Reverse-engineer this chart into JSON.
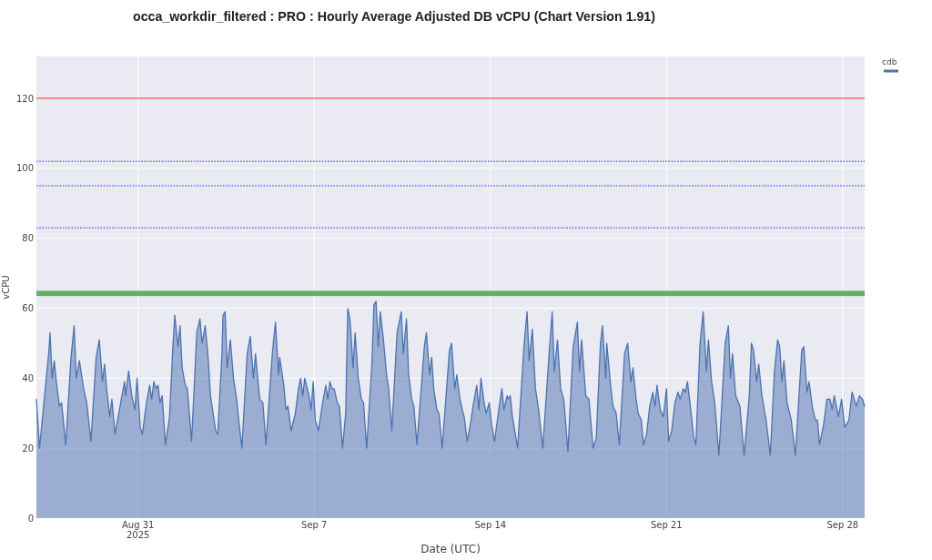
{
  "chart_data": {
    "type": "area",
    "title": "occa_workdir_filtered : PRO : Hourly Average Adjusted DB vCPU (Chart Version 1.91)",
    "xlabel": "Date (UTC)",
    "ylabel": "vCPU",
    "x": [
      "2025-08-26T23:00",
      "2025-08-27T02:00",
      "2025-08-27T11:00",
      "2025-08-27T12:00",
      "2025-08-27T14:00",
      "2025-08-27T16:00",
      "2025-08-27T18:00",
      "2025-08-27T21:00",
      "2025-08-27T23:00",
      "2025-08-28T03:00",
      "2025-08-28T08:00",
      "2025-08-28T11:00",
      "2025-08-28T13:00",
      "2025-08-28T16:00",
      "2025-08-28T20:00",
      "2025-08-28T23:00",
      "2025-08-29T03:00",
      "2025-08-29T08:00",
      "2025-08-29T11:00",
      "2025-08-29T14:00",
      "2025-08-29T16:00",
      "2025-08-29T18:00",
      "2025-08-29T21:00",
      "2025-08-29T23:00",
      "2025-08-30T02:00",
      "2025-08-30T08:00",
      "2025-08-30T11:00",
      "2025-08-30T12:00",
      "2025-08-30T15:00",
      "2025-08-30T18:00",
      "2025-08-30T21:00",
      "2025-08-30T23:00",
      "2025-08-31T02:00",
      "2025-08-31T04:00",
      "2025-08-31T08:00",
      "2025-08-31T11:00",
      "2025-08-31T13:00",
      "2025-08-31T15:00",
      "2025-08-31T17:00",
      "2025-08-31T19:00",
      "2025-08-31T21:00",
      "2025-08-31T23:00",
      "2025-09-01T02:00",
      "2025-09-01T06:00",
      "2025-09-01T09:00",
      "2025-09-01T11:00",
      "2025-09-01T14:00",
      "2025-09-01T16:00",
      "2025-09-01T18:00",
      "2025-09-01T21:00",
      "2025-09-01T23:00",
      "2025-09-02T03:00",
      "2025-09-02T08:00",
      "2025-09-02T11:00",
      "2025-09-02T13:00",
      "2025-09-02T16:00",
      "2025-09-02T19:00",
      "2025-09-02T21:00",
      "2025-09-03T00:00",
      "2025-09-03T02:00",
      "2025-09-03T04:00",
      "2025-09-03T08:00",
      "2025-09-03T09:00",
      "2025-09-03T11:00",
      "2025-09-03T13:00",
      "2025-09-03T16:00",
      "2025-09-03T19:00",
      "2025-09-03T22:00",
      "2025-09-04T00:00",
      "2025-09-04T03:00",
      "2025-09-04T08:00",
      "2025-09-04T11:00",
      "2025-09-04T14:00",
      "2025-09-04T16:00",
      "2025-09-04T20:00",
      "2025-09-04T23:00",
      "2025-09-05T02:00",
      "2025-09-05T08:00",
      "2025-09-05T11:00",
      "2025-09-05T14:00",
      "2025-09-05T15:00",
      "2025-09-05T19:00",
      "2025-09-05T21:00",
      "2025-09-05T23:00",
      "2025-09-06T02:00",
      "2025-09-06T06:00",
      "2025-09-06T09:00",
      "2025-09-06T11:00",
      "2025-09-06T13:00",
      "2025-09-06T15:00",
      "2025-09-06T19:00",
      "2025-09-06T21:00",
      "2025-09-06T23:00",
      "2025-09-07T01:00",
      "2025-09-07T04:00",
      "2025-09-07T08:00",
      "2025-09-07T11:00",
      "2025-09-07T13:00",
      "2025-09-07T15:00",
      "2025-09-07T17:00",
      "2025-09-07T19:00",
      "2025-09-07T22:00",
      "2025-09-08T00:00",
      "2025-09-08T03:00",
      "2025-09-08T06:00",
      "2025-09-08T08:00",
      "2025-09-08T10:00",
      "2025-09-08T11:00",
      "2025-09-08T13:00",
      "2025-09-08T15:00",
      "2025-09-08T18:00",
      "2025-09-08T21:00",
      "2025-09-08T23:00",
      "2025-09-09T02:00",
      "2025-09-09T07:00",
      "2025-09-09T09:00",
      "2025-09-09T11:00",
      "2025-09-09T13:00",
      "2025-09-09T15:00",
      "2025-09-09T18:00",
      "2025-09-09T21:00",
      "2025-09-09T23:00",
      "2025-09-10T02:00",
      "2025-09-10T07:00",
      "2025-09-10T11:00",
      "2025-09-10T13:00",
      "2025-09-10T16:00",
      "2025-09-10T18:00",
      "2025-09-10T21:00",
      "2025-09-10T23:00",
      "2025-09-11T02:00",
      "2025-09-11T09:00",
      "2025-09-11T11:00",
      "2025-09-11T14:00",
      "2025-09-11T16:00",
      "2025-09-11T18:00",
      "2025-09-11T21:00",
      "2025-09-11T23:00",
      "2025-09-12T02:00",
      "2025-09-12T09:00",
      "2025-09-12T11:00",
      "2025-09-12T14:00",
      "2025-09-12T16:00",
      "2025-09-12T19:00",
      "2025-09-12T22:00",
      "2025-09-12T23:00",
      "2025-09-13T02:00",
      "2025-09-13T05:00",
      "2025-09-13T08:00",
      "2025-09-13T11:00",
      "2025-09-13T13:00",
      "2025-09-13T15:00",
      "2025-09-13T18:00",
      "2025-09-13T20:00",
      "2025-09-13T23:00",
      "2025-09-14T01:00",
      "2025-09-14T04:00",
      "2025-09-14T08:00",
      "2025-09-14T11:00",
      "2025-09-14T13:00",
      "2025-09-14T16:00",
      "2025-09-14T17:00",
      "2025-09-14T19:00",
      "2025-09-14T21:00",
      "2025-09-15T02:00",
      "2025-09-15T08:00",
      "2025-09-15T11:00",
      "2025-09-15T13:00",
      "2025-09-15T16:00",
      "2025-09-15T19:00",
      "2025-09-15T22:00",
      "2025-09-16T02:00",
      "2025-09-16T08:00",
      "2025-09-16T11:00",
      "2025-09-16T13:00",
      "2025-09-16T16:00",
      "2025-09-16T19:00",
      "2025-09-16T22:00",
      "2025-09-17T02:00",
      "2025-09-17T07:00",
      "2025-09-17T11:00",
      "2025-09-17T13:00",
      "2025-09-17T15:00",
      "2025-09-17T19:00",
      "2025-09-17T22:00",
      "2025-09-18T02:00",
      "2025-09-18T05:00",
      "2025-09-18T09:00",
      "2025-09-18T11:00",
      "2025-09-18T14:00",
      "2025-09-18T15:00",
      "2025-09-18T19:00",
      "2025-09-18T21:00",
      "2025-09-19T00:00",
      "2025-09-19T03:00",
      "2025-09-19T08:00",
      "2025-09-19T11:00",
      "2025-09-19T14:00",
      "2025-09-19T16:00",
      "2025-09-19T19:00",
      "2025-09-19T21:00",
      "2025-09-20T00:00",
      "2025-09-20T02:00",
      "2025-09-20T05:00",
      "2025-09-20T08:00",
      "2025-09-20T11:00",
      "2025-09-20T13:00",
      "2025-09-20T15:00",
      "2025-09-20T18:00",
      "2025-09-20T21:00",
      "2025-09-21T00:00",
      "2025-09-21T02:00",
      "2025-09-21T05:00",
      "2025-09-21T08:00",
      "2025-09-21T11:00",
      "2025-09-21T13:00",
      "2025-09-21T16:00",
      "2025-09-21T18:00",
      "2025-09-21T20:00",
      "2025-09-21T22:00",
      "2025-09-22T02:00",
      "2025-09-22T04:00",
      "2025-09-22T08:00",
      "2025-09-22T11:00",
      "2025-09-22T14:00",
      "2025-09-22T16:00",
      "2025-09-22T19:00",
      "2025-09-22T22:00",
      "2025-09-23T02:00",
      "2025-09-23T08:00",
      "2025-09-23T11:00",
      "2025-09-23T13:00",
      "2025-09-23T15:00",
      "2025-09-23T18:00",
      "2025-09-23T22:00",
      "2025-09-24T02:00",
      "2025-09-24T07:00",
      "2025-09-24T09:00",
      "2025-09-24T11:00",
      "2025-09-24T14:00",
      "2025-09-24T16:00",
      "2025-09-24T19:00",
      "2025-09-24T23:00",
      "2025-09-25T03:00",
      "2025-09-25T07:00",
      "2025-09-25T10:00",
      "2025-09-25T12:00",
      "2025-09-25T14:00",
      "2025-09-25T16:00",
      "2025-09-25T19:00",
      "2025-09-25T23:00",
      "2025-09-26T03:00",
      "2025-09-26T06:00",
      "2025-09-26T09:00",
      "2025-09-26T11:00",
      "2025-09-26T14:00",
      "2025-09-26T16:00",
      "2025-09-26T19:00",
      "2025-09-26T22:00",
      "2025-09-27T00:00",
      "2025-09-27T02:00",
      "2025-09-27T06:00",
      "2025-09-27T09:00",
      "2025-09-27T12:00",
      "2025-09-27T14:00",
      "2025-09-27T16:00",
      "2025-09-27T20:00",
      "2025-09-27T23:00",
      "2025-09-28T02:00",
      "2025-09-28T06:00",
      "2025-09-28T09:00",
      "2025-09-28T13:00",
      "2025-09-28T16:00",
      "2025-09-28T19:00",
      "2025-09-28T21:00"
    ],
    "series": [
      {
        "name": "cdb",
        "color": "#4c72b0",
        "values": [
          34,
          20,
          48,
          53,
          40,
          45,
          39,
          32,
          33,
          21,
          46,
          55,
          40,
          45,
          37,
          33,
          22,
          46,
          51,
          39,
          44,
          37,
          29,
          34,
          24,
          34,
          39,
          35,
          42,
          35,
          31,
          40,
          26,
          24,
          33,
          38,
          34,
          39,
          37,
          38,
          33,
          35,
          21,
          29,
          48,
          58,
          49,
          55,
          43,
          38,
          37,
          22,
          53,
          57,
          50,
          55,
          45,
          35,
          29,
          25,
          24,
          47,
          58,
          59,
          43,
          51,
          40,
          34,
          28,
          20,
          47,
          52,
          40,
          47,
          34,
          33,
          21,
          47,
          56,
          41,
          46,
          38,
          31,
          32,
          25,
          30,
          37,
          40,
          35,
          40,
          35,
          31,
          39,
          28,
          25,
          33,
          38,
          34,
          39,
          37,
          37,
          33,
          32,
          20,
          30,
          60,
          57,
          53,
          43,
          53,
          40,
          34,
          33,
          20,
          44,
          61,
          62,
          49,
          59,
          51,
          41,
          37,
          25,
          53,
          59,
          47,
          57,
          41,
          34,
          32,
          21,
          49,
          53,
          41,
          46,
          37,
          31,
          30,
          20,
          48,
          50,
          37,
          41,
          34,
          30,
          29,
          22,
          27,
          33,
          38,
          31,
          40,
          33,
          30,
          33,
          27,
          22,
          31,
          37,
          31,
          35,
          34,
          35,
          29,
          20,
          49,
          59,
          45,
          54,
          37,
          31,
          20,
          47,
          59,
          42,
          51,
          37,
          34,
          19,
          49,
          56,
          42,
          51,
          35,
          34,
          20,
          23,
          50,
          55,
          40,
          50,
          37,
          32,
          30,
          21,
          47,
          50,
          39,
          43,
          34,
          30,
          28,
          21,
          24,
          32,
          36,
          32,
          38,
          31,
          29,
          37,
          22,
          25,
          33,
          36,
          34,
          37,
          36,
          39,
          34,
          23,
          21,
          50,
          59,
          42,
          51,
          39,
          33,
          18,
          50,
          55,
          40,
          47,
          35,
          32,
          18,
          35,
          50,
          48,
          39,
          44,
          35,
          28,
          18,
          42,
          51,
          49,
          39,
          45,
          33,
          28,
          18,
          33,
          48,
          49,
          36,
          39,
          32,
          28,
          28,
          21,
          27,
          34,
          34,
          31,
          35,
          29,
          34,
          26,
          28,
          36,
          32,
          35,
          34,
          32
        ]
      }
    ],
    "xlim": [
      "2025-08-26T23:00",
      "2025-09-28T21:00"
    ],
    "xticks": [
      {
        "value": "2025-08-31",
        "label": "Aug 31\n2025"
      },
      {
        "value": "2025-09-07",
        "label": "Sep 7"
      },
      {
        "value": "2025-09-14",
        "label": "Sep 14"
      },
      {
        "value": "2025-09-21",
        "label": "Sep 21"
      },
      {
        "value": "2025-09-28",
        "label": "Sep 28"
      }
    ],
    "ylim": [
      0,
      132
    ],
    "yticks": [
      0,
      20,
      40,
      60,
      80,
      100,
      120
    ],
    "ref_lines": [
      {
        "axis": "y",
        "value": 120,
        "color": "#ef6b6b",
        "line_style": "solid"
      },
      {
        "axis": "y",
        "value": 102,
        "color": "#6f6fff",
        "line_style": "dotted"
      },
      {
        "axis": "y",
        "value": 95,
        "color": "#6f6fff",
        "line_style": "dotted"
      },
      {
        "axis": "y",
        "value": 83,
        "color": "#6f6fff",
        "line_style": "dotted"
      }
    ],
    "bands": [
      {
        "axis": "y",
        "from": 63.5,
        "to": 65,
        "color": "#62b062"
      }
    ],
    "grid": true,
    "legend": "top right"
  }
}
